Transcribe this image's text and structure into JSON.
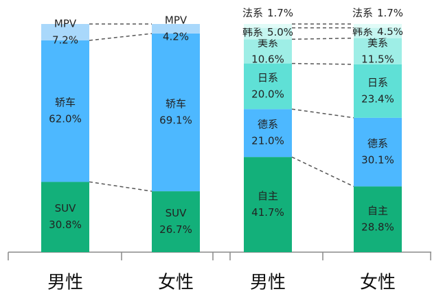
{
  "chart_data": [
    {
      "type": "stacked_bar",
      "categories": [
        "男性",
        "女性"
      ],
      "series": [
        {
          "name": "SUV",
          "color": "#13b07a",
          "values": [
            30.8,
            26.7
          ],
          "value_labels": [
            "30.8%",
            "26.7%"
          ]
        },
        {
          "name": "轿车",
          "color": "#4db8ff",
          "values": [
            62.0,
            69.1
          ],
          "value_labels": [
            "62.0%",
            "69.1%"
          ]
        },
        {
          "name": "MPV",
          "color": "#a9d8fb",
          "values": [
            7.2,
            4.2
          ],
          "value_labels": [
            "7.2%",
            "4.2%"
          ]
        }
      ]
    },
    {
      "type": "stacked_bar",
      "categories": [
        "男性",
        "女性"
      ],
      "series": [
        {
          "name": "自主",
          "color": "#13b07a",
          "values": [
            41.7,
            28.8
          ],
          "value_labels": [
            "41.7%",
            "28.8%"
          ]
        },
        {
          "name": "德系",
          "color": "#4db8ff",
          "values": [
            21.0,
            30.1
          ],
          "value_labels": [
            "21.0%",
            "30.1%"
          ]
        },
        {
          "name": "日系",
          "color": "#5fe0d6",
          "values": [
            20.0,
            23.4
          ],
          "value_labels": [
            "20.0%",
            "23.4%"
          ]
        },
        {
          "name": "美系",
          "color": "#9eeee6",
          "values": [
            10.6,
            11.5
          ],
          "value_labels": [
            "10.6%",
            "11.5%"
          ]
        },
        {
          "name": "韩系",
          "color": "#c5f5f0",
          "values": [
            5.0,
            4.5
          ],
          "value_labels": [
            "5.0%",
            "4.5%"
          ]
        },
        {
          "name": "法系",
          "color": "#e0fbf7",
          "values": [
            1.7,
            1.7
          ],
          "value_labels": [
            "1.7%",
            "1.7%"
          ]
        }
      ]
    }
  ]
}
